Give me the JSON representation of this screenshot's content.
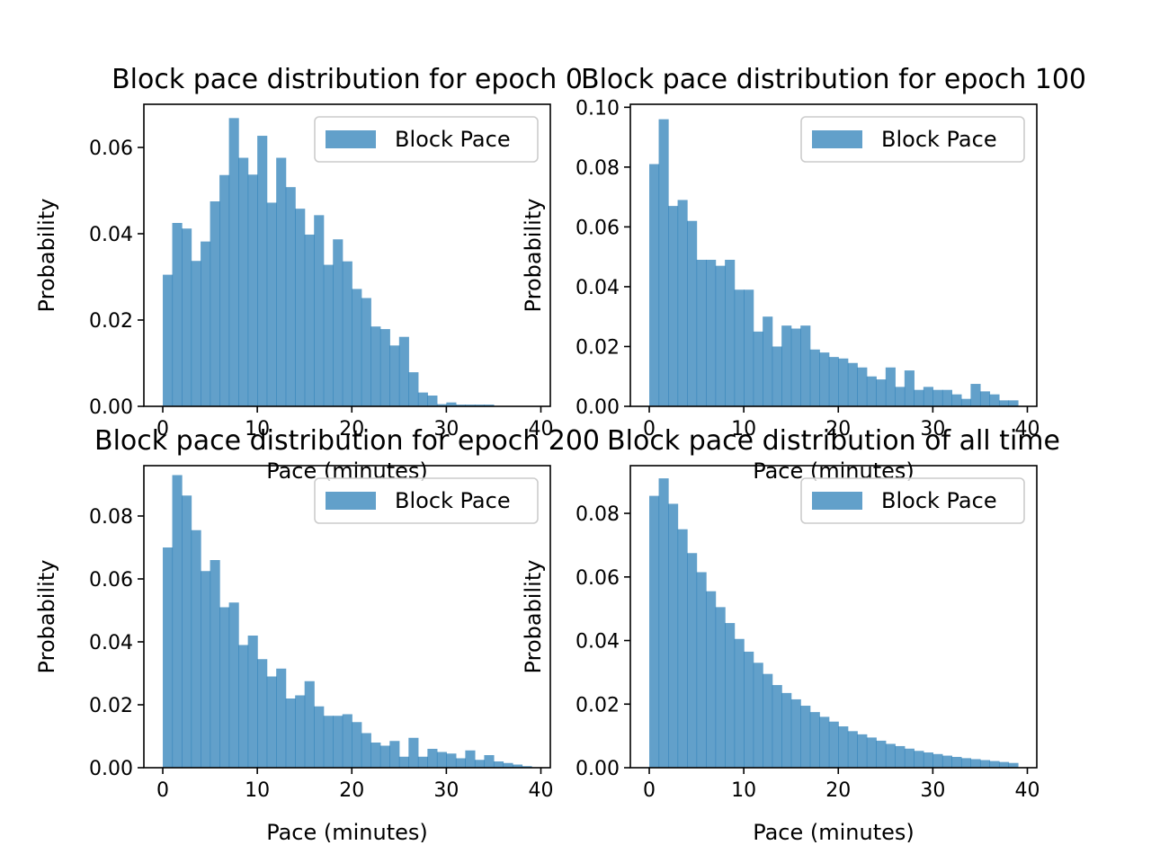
{
  "bar_color": "#1f77b4",
  "bar_alpha": 0.7,
  "chart_data": [
    {
      "type": "bar",
      "title": "Block pace distribution for epoch 0",
      "xlabel": "Pace (minutes)",
      "ylabel": "Probability",
      "legend": [
        "Block Pace"
      ],
      "legend_loc": "upper right",
      "bin_width": 1,
      "bin_start": 0,
      "xlim": [
        -2,
        41
      ],
      "ylim": [
        0,
        0.07
      ],
      "xticks": [
        0,
        10,
        20,
        30,
        40
      ],
      "yticks": [
        0.0,
        0.02,
        0.04,
        0.06
      ],
      "ytick_labels": [
        "0.00",
        "0.02",
        "0.04",
        "0.06"
      ],
      "values": [
        0.0305,
        0.0425,
        0.0412,
        0.0337,
        0.0382,
        0.0475,
        0.0536,
        0.0668,
        0.0576,
        0.0537,
        0.0627,
        0.0472,
        0.0576,
        0.0508,
        0.0458,
        0.0398,
        0.0443,
        0.0328,
        0.0387,
        0.0336,
        0.0272,
        0.0251,
        0.0185,
        0.0179,
        0.0141,
        0.0161,
        0.0079,
        0.0032,
        0.0025,
        0.0005,
        0.0009,
        0.0004,
        0.0004,
        0.0004,
        0.0004,
        0,
        0,
        0,
        0
      ]
    },
    {
      "type": "bar",
      "title": "Block pace distribution for epoch 100",
      "xlabel": "Pace (minutes)",
      "ylabel": "Probability",
      "legend": [
        "Block Pace"
      ],
      "legend_loc": "upper right",
      "bin_width": 1,
      "bin_start": 0,
      "xlim": [
        -2,
        41
      ],
      "ylim": [
        0,
        0.101
      ],
      "xticks": [
        0,
        10,
        20,
        30,
        40
      ],
      "yticks": [
        0.0,
        0.02,
        0.04,
        0.06,
        0.08,
        0.1
      ],
      "ytick_labels": [
        "0.00",
        "0.02",
        "0.04",
        "0.06",
        "0.08",
        "0.10"
      ],
      "values": [
        0.081,
        0.096,
        0.067,
        0.069,
        0.062,
        0.049,
        0.049,
        0.047,
        0.049,
        0.039,
        0.039,
        0.025,
        0.03,
        0.02,
        0.027,
        0.026,
        0.027,
        0.019,
        0.018,
        0.0165,
        0.016,
        0.0145,
        0.013,
        0.01,
        0.009,
        0.013,
        0.0065,
        0.012,
        0.0055,
        0.0065,
        0.0055,
        0.0055,
        0.004,
        0.0025,
        0.0075,
        0.005,
        0.004,
        0.002,
        0.002
      ]
    },
    {
      "type": "bar",
      "title": "Block pace distribution for epoch 200",
      "xlabel": "Pace (minutes)",
      "ylabel": "Probability",
      "legend": [
        "Block Pace"
      ],
      "legend_loc": "upper right",
      "bin_width": 1,
      "bin_start": 0,
      "xlim": [
        -2,
        41
      ],
      "ylim": [
        0,
        0.096
      ],
      "xticks": [
        0,
        10,
        20,
        30,
        40
      ],
      "yticks": [
        0.0,
        0.02,
        0.04,
        0.06,
        0.08
      ],
      "ytick_labels": [
        "0.00",
        "0.02",
        "0.04",
        "0.06",
        "0.08"
      ],
      "values": [
        0.07,
        0.093,
        0.0865,
        0.0755,
        0.0625,
        0.066,
        0.051,
        0.0525,
        0.039,
        0.042,
        0.0345,
        0.029,
        0.0315,
        0.022,
        0.023,
        0.0275,
        0.0195,
        0.0165,
        0.0165,
        0.017,
        0.0145,
        0.011,
        0.008,
        0.007,
        0.0085,
        0.0035,
        0.0095,
        0.0035,
        0.006,
        0.005,
        0.0045,
        0.003,
        0.0055,
        0.0025,
        0.004,
        0.002,
        0.0015,
        0.001,
        0.0005
      ]
    },
    {
      "type": "bar",
      "title": "Block pace distribution of all time",
      "xlabel": "Pace (minutes)",
      "ylabel": "Probability",
      "legend": [
        "Block Pace"
      ],
      "legend_loc": "upper right",
      "bin_width": 1,
      "bin_start": 0,
      "xlim": [
        -2,
        41
      ],
      "ylim": [
        0,
        0.095
      ],
      "xticks": [
        0,
        10,
        20,
        30,
        40
      ],
      "yticks": [
        0.0,
        0.02,
        0.04,
        0.06,
        0.08
      ],
      "ytick_labels": [
        "0.00",
        "0.02",
        "0.04",
        "0.06",
        "0.08"
      ],
      "values": [
        0.0855,
        0.091,
        0.083,
        0.075,
        0.0675,
        0.0615,
        0.0555,
        0.0505,
        0.0455,
        0.0405,
        0.0365,
        0.033,
        0.0295,
        0.026,
        0.0235,
        0.0215,
        0.0195,
        0.0175,
        0.016,
        0.0145,
        0.013,
        0.0115,
        0.0105,
        0.0095,
        0.0085,
        0.0075,
        0.0068,
        0.006,
        0.0053,
        0.0048,
        0.0043,
        0.0038,
        0.0034,
        0.003,
        0.0027,
        0.0024,
        0.0021,
        0.0018,
        0.0015
      ]
    }
  ]
}
